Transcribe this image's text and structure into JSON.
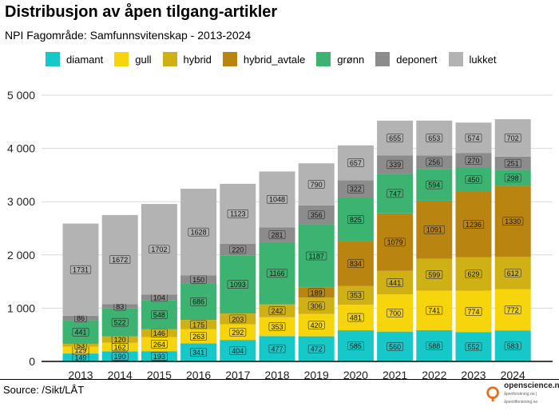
{
  "title": "Distribusjon av åpen tilgang-artikler",
  "subtitle": "NPI Fagområde: Samfunnsvitenskap - 2013-2024",
  "source": "Source: /Sikt/LÅT",
  "logo": {
    "name": "openscience.no",
    "tagline": "åpenforskning.no | åpentilforskning.no"
  },
  "chart_data": {
    "type": "bar",
    "stacked": true,
    "title": "Distribusjon av åpen tilgang-artikler",
    "xlabel": "",
    "ylabel": "",
    "ylim": [
      0,
      5000
    ],
    "yticks": [
      0,
      1000,
      2000,
      3000,
      4000,
      5000
    ],
    "ytick_labels": [
      "0",
      "1 000",
      "2 000",
      "3 000",
      "4 000",
      "5 000"
    ],
    "legend_position": "top",
    "categories": [
      "2013",
      "2014",
      "2015",
      "2016",
      "2017",
      "2018",
      "2019",
      "2020",
      "2021",
      "2022",
      "2023",
      "2024"
    ],
    "series": [
      {
        "name": "diamant",
        "color": "#17c8c8",
        "values": [
          149,
          190,
          193,
          341,
          404,
          477,
          472,
          585,
          560,
          588,
          552,
          583
        ]
      },
      {
        "name": "gull",
        "color": "#f7d50c",
        "values": [
          129,
          162,
          264,
          263,
          292,
          353,
          420,
          481,
          700,
          741,
          774,
          772
        ]
      },
      {
        "name": "hybrid",
        "color": "#cfb115",
        "values": [
          53,
          120,
          146,
          175,
          203,
          242,
          306,
          353,
          441,
          599,
          629,
          612
        ]
      },
      {
        "name": "hybrid_avtale",
        "color": "#b98510",
        "values": [
          0,
          0,
          0,
          0,
          0,
          0,
          189,
          834,
          1079,
          1091,
          1236,
          1330
        ]
      },
      {
        "name": "grønn",
        "color": "#3cb371",
        "values": [
          441,
          522,
          548,
          686,
          1093,
          1166,
          1187,
          825,
          747,
          594,
          450,
          298
        ]
      },
      {
        "name": "deponert",
        "color": "#8c8c8c",
        "values": [
          86,
          83,
          104,
          150,
          220,
          281,
          356,
          322,
          339,
          256,
          270,
          251
        ]
      },
      {
        "name": "lukket",
        "color": "#b3b3b3",
        "values": [
          1731,
          1672,
          1702,
          1628,
          1123,
          1048,
          790,
          657,
          655,
          653,
          574,
          702
        ]
      }
    ]
  }
}
